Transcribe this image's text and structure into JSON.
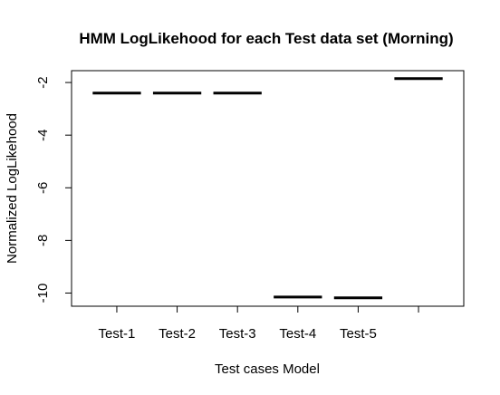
{
  "chart_data": {
    "type": "box",
    "title": "HMM LogLikehood for each Test data set (Morning)",
    "xlabel": "Test cases Model",
    "ylabel": "Normalized LogLikehood",
    "categories": [
      "Test-1",
      "Test-2",
      "Test-3",
      "Test-4",
      "Test-5",
      ""
    ],
    "values": [
      -2.4,
      -2.4,
      -2.4,
      -10.15,
      -10.18,
      -1.85
    ],
    "ylim": [
      -10.5,
      -1.55
    ],
    "yticks": [
      -10,
      -8,
      -6,
      -4,
      -2
    ],
    "ytick_labels": [
      "-10",
      "-8",
      "-6",
      "-4",
      "-2"
    ],
    "grid": false,
    "legend": "none",
    "line_color": "#000000"
  }
}
